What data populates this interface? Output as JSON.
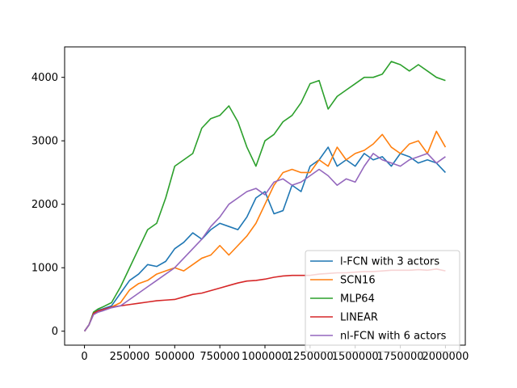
{
  "chart_data": {
    "type": "line",
    "title": "",
    "xlabel": "",
    "ylabel": "",
    "xlim": [
      -110000,
      2110000
    ],
    "ylim": [
      -220,
      4480
    ],
    "x_ticks": [
      0,
      250000,
      500000,
      750000,
      1000000,
      1250000,
      1500000,
      1750000,
      2000000
    ],
    "x_tick_labels": [
      "0",
      "250000",
      "500000",
      "750000",
      "1000000",
      "1250000",
      "1500000",
      "1750000",
      "2000000"
    ],
    "y_ticks": [
      0,
      1000,
      2000,
      3000,
      4000
    ],
    "y_tick_labels": [
      "0",
      "1000",
      "2000",
      "3000",
      "4000"
    ],
    "grid": false,
    "legend_position": "lower-right",
    "series": [
      {
        "name": "l-FCN with 3 actors",
        "color": "#1f77b4",
        "x": [
          0,
          25000,
          50000,
          75000,
          100000,
          150000,
          200000,
          250000,
          300000,
          350000,
          400000,
          450000,
          500000,
          550000,
          600000,
          650000,
          700000,
          750000,
          800000,
          850000,
          900000,
          950000,
          1000000,
          1050000,
          1100000,
          1150000,
          1200000,
          1250000,
          1300000,
          1350000,
          1400000,
          1450000,
          1500000,
          1550000,
          1600000,
          1650000,
          1700000,
          1750000,
          1800000,
          1850000,
          1900000,
          1950000,
          2000000
        ],
        "y": [
          0,
          100,
          280,
          330,
          350,
          400,
          600,
          800,
          900,
          1050,
          1020,
          1100,
          1300,
          1400,
          1550,
          1450,
          1600,
          1700,
          1650,
          1600,
          1800,
          2100,
          2200,
          1850,
          1900,
          2300,
          2200,
          2600,
          2700,
          2900,
          2600,
          2700,
          2600,
          2800,
          2700,
          2750,
          2600,
          2800,
          2750,
          2650,
          2700,
          2650,
          2500
        ]
      },
      {
        "name": "SCN16",
        "color": "#ff7f0e",
        "x": [
          0,
          25000,
          50000,
          75000,
          100000,
          150000,
          200000,
          250000,
          300000,
          350000,
          400000,
          450000,
          500000,
          550000,
          600000,
          650000,
          700000,
          750000,
          800000,
          850000,
          900000,
          950000,
          1000000,
          1050000,
          1100000,
          1150000,
          1200000,
          1250000,
          1300000,
          1350000,
          1400000,
          1450000,
          1500000,
          1550000,
          1600000,
          1650000,
          1700000,
          1750000,
          1800000,
          1850000,
          1900000,
          1950000,
          2000000
        ],
        "y": [
          0,
          100,
          270,
          300,
          330,
          380,
          450,
          650,
          750,
          800,
          900,
          950,
          1000,
          950,
          1050,
          1150,
          1200,
          1350,
          1200,
          1350,
          1500,
          1700,
          2000,
          2300,
          2500,
          2550,
          2500,
          2500,
          2700,
          2600,
          2900,
          2700,
          2800,
          2850,
          2950,
          3100,
          2900,
          2800,
          2950,
          3000,
          2800,
          3150,
          2900
        ]
      },
      {
        "name": "MLP64",
        "color": "#2ca02c",
        "x": [
          0,
          25000,
          50000,
          75000,
          100000,
          150000,
          200000,
          250000,
          300000,
          350000,
          400000,
          450000,
          500000,
          550000,
          600000,
          650000,
          700000,
          750000,
          800000,
          850000,
          900000,
          950000,
          1000000,
          1050000,
          1100000,
          1150000,
          1200000,
          1250000,
          1300000,
          1350000,
          1400000,
          1450000,
          1500000,
          1550000,
          1600000,
          1650000,
          1700000,
          1750000,
          1800000,
          1850000,
          1900000,
          1950000,
          2000000
        ],
        "y": [
          0,
          100,
          300,
          350,
          380,
          450,
          700,
          1000,
          1300,
          1600,
          1700,
          2100,
          2600,
          2700,
          2800,
          3200,
          3350,
          3400,
          3550,
          3300,
          2900,
          2600,
          3000,
          3100,
          3300,
          3400,
          3600,
          3900,
          3950,
          3500,
          3700,
          3800,
          3900,
          4000,
          4000,
          4050,
          4250,
          4200,
          4100,
          4200,
          4100,
          4000,
          3950
        ]
      },
      {
        "name": "LINEAR",
        "color": "#d62728",
        "x": [
          0,
          25000,
          50000,
          75000,
          100000,
          150000,
          200000,
          250000,
          300000,
          350000,
          400000,
          450000,
          500000,
          550000,
          600000,
          650000,
          700000,
          750000,
          800000,
          850000,
          900000,
          950000,
          1000000,
          1050000,
          1100000,
          1150000,
          1200000,
          1250000,
          1300000,
          1350000,
          1400000,
          1450000,
          1500000,
          1550000,
          1600000,
          1650000,
          1700000,
          1750000,
          1800000,
          1850000,
          1900000,
          1950000,
          2000000
        ],
        "y": [
          0,
          100,
          280,
          320,
          340,
          380,
          400,
          420,
          440,
          460,
          480,
          490,
          500,
          540,
          580,
          600,
          640,
          680,
          720,
          760,
          790,
          800,
          820,
          850,
          870,
          880,
          880,
          880,
          900,
          910,
          920,
          920,
          930,
          940,
          940,
          950,
          960,
          960,
          960,
          970,
          960,
          980,
          950
        ]
      },
      {
        "name": "nl-FCN with 6 actors",
        "color": "#9467bd",
        "x": [
          0,
          25000,
          50000,
          75000,
          100000,
          150000,
          200000,
          250000,
          300000,
          350000,
          400000,
          450000,
          500000,
          550000,
          600000,
          650000,
          700000,
          750000,
          800000,
          850000,
          900000,
          950000,
          1000000,
          1050000,
          1100000,
          1150000,
          1200000,
          1250000,
          1300000,
          1350000,
          1400000,
          1450000,
          1500000,
          1550000,
          1600000,
          1650000,
          1700000,
          1750000,
          1800000,
          1850000,
          1900000,
          1950000,
          2000000
        ],
        "y": [
          0,
          100,
          260,
          300,
          320,
          370,
          400,
          500,
          600,
          700,
          800,
          900,
          1000,
          1150,
          1300,
          1450,
          1650,
          1800,
          2000,
          2100,
          2200,
          2250,
          2150,
          2350,
          2400,
          2300,
          2350,
          2450,
          2550,
          2450,
          2300,
          2400,
          2350,
          2600,
          2800,
          2700,
          2650,
          2600,
          2700,
          2750,
          2800,
          2650,
          2750
        ]
      }
    ]
  }
}
